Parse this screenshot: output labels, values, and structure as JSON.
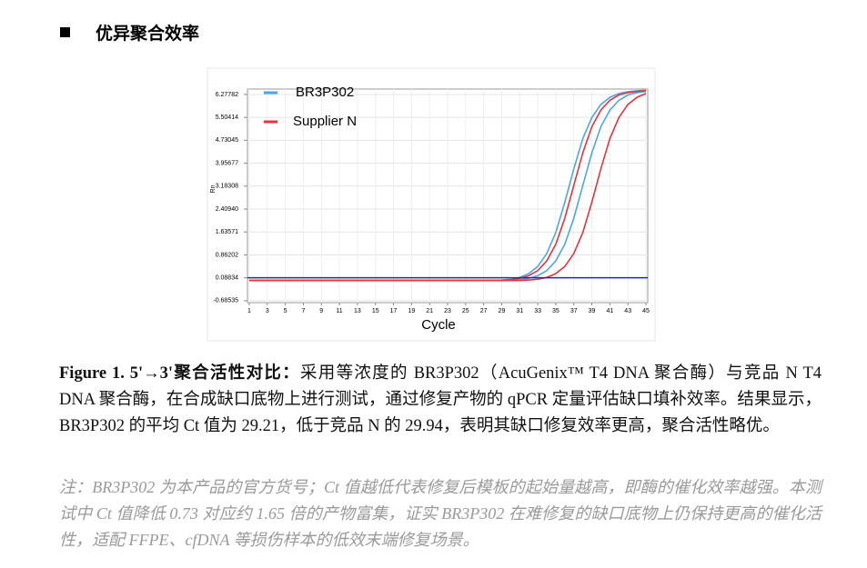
{
  "heading": "优异聚合效率",
  "chart_data": {
    "type": "line",
    "y_label": "Rn",
    "x_label": "Cycle",
    "x": [
      1,
      2,
      3,
      4,
      5,
      6,
      7,
      8,
      9,
      10,
      11,
      12,
      13,
      14,
      15,
      16,
      17,
      18,
      19,
      20,
      21,
      22,
      23,
      24,
      25,
      26,
      27,
      28,
      29,
      30,
      31,
      32,
      33,
      34,
      35,
      36,
      37,
      38,
      39,
      40,
      41,
      42,
      43,
      44,
      45
    ],
    "xlim": [
      0.8,
      45.2
    ],
    "xticks": [
      1,
      3,
      5,
      7,
      9,
      11,
      13,
      15,
      17,
      19,
      21,
      23,
      25,
      27,
      29,
      31,
      33,
      35,
      37,
      39,
      41,
      43,
      45
    ],
    "ylim": [
      -0.75,
      6.46
    ],
    "yticks": [
      -0.68535,
      0.08834,
      0.86202,
      1.63571,
      {
        "value": 2.4094,
        "label": "2.40940"
      },
      3.18308,
      3.95677,
      4.73045,
      5.50414,
      6.27782
    ],
    "grid": true,
    "threshold": 0.09,
    "threshold_color": "#1f2fa8",
    "series": [
      {
        "name": "BR3P302",
        "color": "#4aa8e6",
        "values": [
          [
            0,
            0,
            0,
            0,
            0,
            0,
            0,
            0,
            0,
            0,
            0,
            0,
            0,
            0,
            0,
            0,
            0,
            0,
            0,
            0,
            0,
            0,
            0,
            0,
            0,
            0,
            0,
            0.0,
            0.01,
            0.04,
            0.1,
            0.23,
            0.47,
            0.91,
            1.62,
            2.64,
            3.77,
            4.79,
            5.5,
            5.94,
            6.18,
            6.31,
            6.37,
            6.4,
            6.42
          ],
          [
            0,
            0,
            0,
            0,
            0,
            0,
            0,
            0,
            0,
            0,
            0,
            0,
            0,
            0,
            0,
            0,
            0,
            0,
            0,
            0,
            0,
            0,
            0,
            0,
            0,
            0,
            0,
            0,
            0,
            0.0,
            0.02,
            0.07,
            0.16,
            0.33,
            0.66,
            1.22,
            2.1,
            3.21,
            4.31,
            5.19,
            5.75,
            6.08,
            6.26,
            6.34,
            6.38
          ]
        ]
      },
      {
        "name": "Supplier N",
        "color": "#e8323c",
        "values": [
          [
            0,
            0,
            0,
            0,
            0,
            0,
            0,
            0,
            0,
            0,
            0,
            0,
            0,
            0,
            0,
            0,
            0,
            0,
            0,
            0,
            0,
            0,
            0,
            0,
            0,
            0,
            0,
            0,
            0.0,
            0.02,
            0.07,
            0.16,
            0.33,
            0.66,
            1.22,
            2.1,
            3.21,
            4.31,
            5.19,
            5.75,
            6.08,
            6.26,
            6.34,
            6.38,
            6.41
          ],
          [
            0,
            0,
            0,
            0,
            0,
            0,
            0,
            0,
            0,
            0,
            0,
            0,
            0,
            0,
            0,
            0,
            0,
            0,
            0,
            0,
            0,
            0,
            0,
            0,
            0,
            0,
            0,
            0,
            0,
            0,
            0.0,
            0.01,
            0.04,
            0.1,
            0.23,
            0.47,
            0.91,
            1.62,
            2.64,
            3.77,
            4.79,
            5.5,
            5.94,
            6.18,
            6.31
          ]
        ]
      }
    ]
  },
  "caption": {
    "label": "Figure 1. 5'→3'聚合活性对比：",
    "text": "采用等浓度的 BR3P302（AcuGenix™ T4 DNA 聚合酶）与竞品 N T4 DNA 聚合酶，在合成缺口底物上进行测试，通过修复产物的 qPCR 定量评估缺口填补效率。结果显示，BR3P302 的平均 Ct 值为 29.21，低于竞品 N 的 29.94，表明其缺口修复效率更高，聚合活性略优。"
  },
  "note": "注：BR3P302 为本产品的官方货号；Ct 值越低代表修复后模板的起始量越高，即酶的催化效率越强。本测试中 Ct 值降低 0.73 对应约 1.65 倍的产物富集，证实 BR3P302 在难修复的缺口底物上仍保持更高的催化活性，适配 FFPE、cfDNA 等损伤样本的低效末端修复场景。"
}
